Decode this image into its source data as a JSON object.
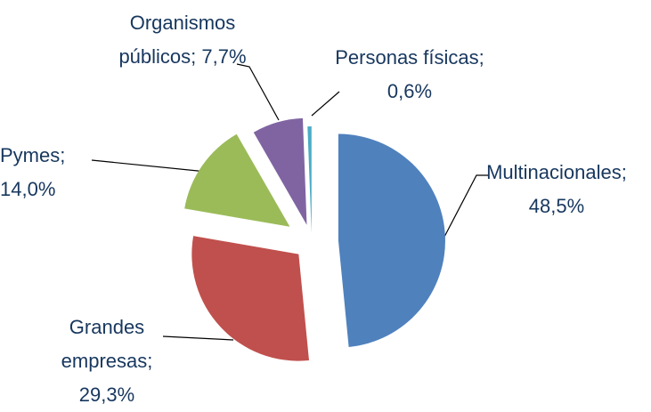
{
  "chart_data": {
    "type": "pie",
    "categories": [
      "Multinacionales",
      "Grandes empresas",
      "Pymes",
      "Organismos públicos",
      "Personas físicas"
    ],
    "values": [
      48.5,
      29.3,
      14.0,
      7.7,
      0.6
    ],
    "value_labels": [
      "48,5%",
      "29,3%",
      "14,0%",
      "7,7%",
      "0,6%"
    ],
    "label_separator": "; ",
    "colors": [
      "#4f81bd",
      "#c0504d",
      "#9bbb59",
      "#8064a2",
      "#4bacc6"
    ]
  }
}
